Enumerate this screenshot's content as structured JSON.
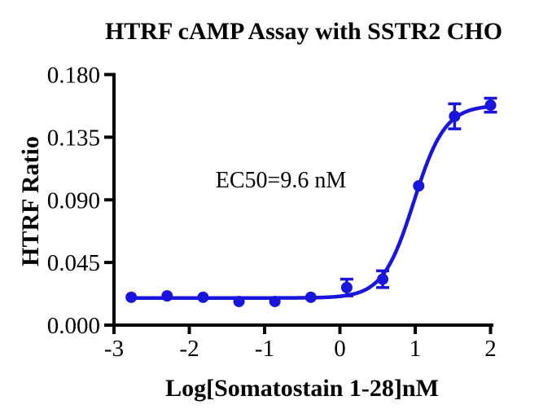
{
  "chart_data": {
    "type": "scatter",
    "title": "HTRF cAMP Assay with SSTR2 CHO",
    "xlabel": "Log[Somatostain 1-28]nM",
    "ylabel": "HTRF Ratio",
    "annotation": "EC50=9.6 nM",
    "ec50_nM": 9.6,
    "xlim": [
      -3,
      2
    ],
    "ylim": [
      0,
      0.18
    ],
    "x_ticks": [
      -3,
      -2,
      -1,
      0,
      1,
      2
    ],
    "x_tick_labels": [
      "-3",
      "-2",
      "-1",
      "0",
      "1",
      "2"
    ],
    "y_ticks": [
      0,
      0.045,
      0.09,
      0.135,
      0.18
    ],
    "y_tick_labels": [
      "0.000",
      "0.045",
      "0.090",
      "0.135",
      "0.180"
    ],
    "grid": false,
    "legend": "none",
    "colors": {
      "curve": "#1a15dd",
      "axis": "#000000"
    },
    "series": [
      {
        "marker": "circle",
        "marker_color": "#1a15dd",
        "line_color": "#1a15dd",
        "points": [
          {
            "x": -2.771,
            "y": 0.02,
            "err": 0
          },
          {
            "x": -2.294,
            "y": 0.021,
            "err": 0
          },
          {
            "x": -1.817,
            "y": 0.02,
            "err": 0
          },
          {
            "x": -1.34,
            "y": 0.017,
            "err": 0
          },
          {
            "x": -0.863,
            "y": 0.017,
            "err": 0
          },
          {
            "x": -0.386,
            "y": 0.02,
            "err": 0
          },
          {
            "x": 0.091,
            "y": 0.027,
            "err": 0.006
          },
          {
            "x": 0.568,
            "y": 0.033,
            "err": 0.006
          },
          {
            "x": 1.046,
            "y": 0.1,
            "err": 0
          },
          {
            "x": 1.523,
            "y": 0.15,
            "err": 0.009
          },
          {
            "x": 2.0,
            "y": 0.158,
            "err": 0.005
          }
        ]
      }
    ],
    "fit": {
      "model": "4PL-sigmoid",
      "bottom": 0.0195,
      "top": 0.158,
      "logec50": 0.982,
      "hill": 2.1,
      "x_start": -2.771,
      "x_end": 2.0
    }
  }
}
